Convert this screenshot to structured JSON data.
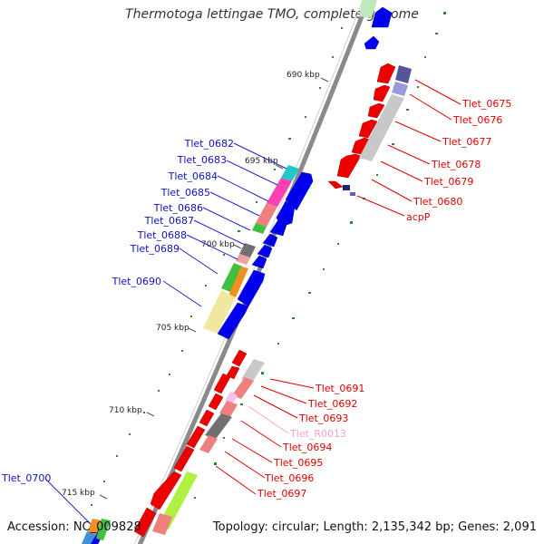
{
  "title": "Thermotoga lettingae TMO, complete genome",
  "footer": {
    "accession": "Accession: NC_009828",
    "summary": "Topology: circular; Length: 2,135,342 bp; Genes: 2,091"
  },
  "colors": {
    "forward_gene": "#0000ee",
    "reverse_gene": "#ee0000",
    "label_forward": "#1010c0",
    "label_reverse": "#e00000",
    "label_rna": "#f0a0d0",
    "backbone": "#808080",
    "tick": "#228822"
  },
  "kbp_labels": [
    {
      "id": "690",
      "text": "690 kbp"
    },
    {
      "id": "695",
      "text": "695 kbp"
    },
    {
      "id": "700",
      "text": "700 kbp"
    },
    {
      "id": "705",
      "text": "705 kbp"
    },
    {
      "id": "710",
      "text": "710 kbp"
    },
    {
      "id": "715",
      "text": "715 kbp"
    }
  ],
  "labels_left": [
    {
      "id": "Tlet_0682",
      "text": "Tlet_0682"
    },
    {
      "id": "Tlet_0683",
      "text": "Tlet_0683"
    },
    {
      "id": "Tlet_0684",
      "text": "Tlet_0684"
    },
    {
      "id": "Tlet_0685",
      "text": "Tlet_0685"
    },
    {
      "id": "Tlet_0686",
      "text": "Tlet_0686"
    },
    {
      "id": "Tlet_0687",
      "text": "Tlet_0687"
    },
    {
      "id": "Tlet_0688",
      "text": "Tlet_0688"
    },
    {
      "id": "Tlet_0689",
      "text": "Tlet_0689"
    },
    {
      "id": "Tlet_0690",
      "text": "Tlet_0690"
    },
    {
      "id": "Tlet_0700",
      "text": "Tlet_0700"
    }
  ],
  "labels_right": [
    {
      "id": "Tlet_0675",
      "text": "Tlet_0675"
    },
    {
      "id": "Tlet_0676",
      "text": "Tlet_0676"
    },
    {
      "id": "Tlet_0677",
      "text": "Tlet_0677"
    },
    {
      "id": "Tlet_0678",
      "text": "Tlet_0678"
    },
    {
      "id": "Tlet_0679",
      "text": "Tlet_0679"
    },
    {
      "id": "Tlet_0680",
      "text": "Tlet_0680"
    },
    {
      "id": "acpP",
      "text": "acpP"
    },
    {
      "id": "Tlet_0691",
      "text": "Tlet_0691"
    },
    {
      "id": "Tlet_0692",
      "text": "Tlet_0692"
    },
    {
      "id": "Tlet_0693",
      "text": "Tlet_0693"
    },
    {
      "id": "Tlet_R0013",
      "text": "Tlet_R0013"
    },
    {
      "id": "Tlet_0694",
      "text": "Tlet_0694"
    },
    {
      "id": "Tlet_0695",
      "text": "Tlet_0695"
    },
    {
      "id": "Tlet_0696",
      "text": "Tlet_0696"
    },
    {
      "id": "Tlet_0697",
      "text": "Tlet_0697"
    }
  ]
}
